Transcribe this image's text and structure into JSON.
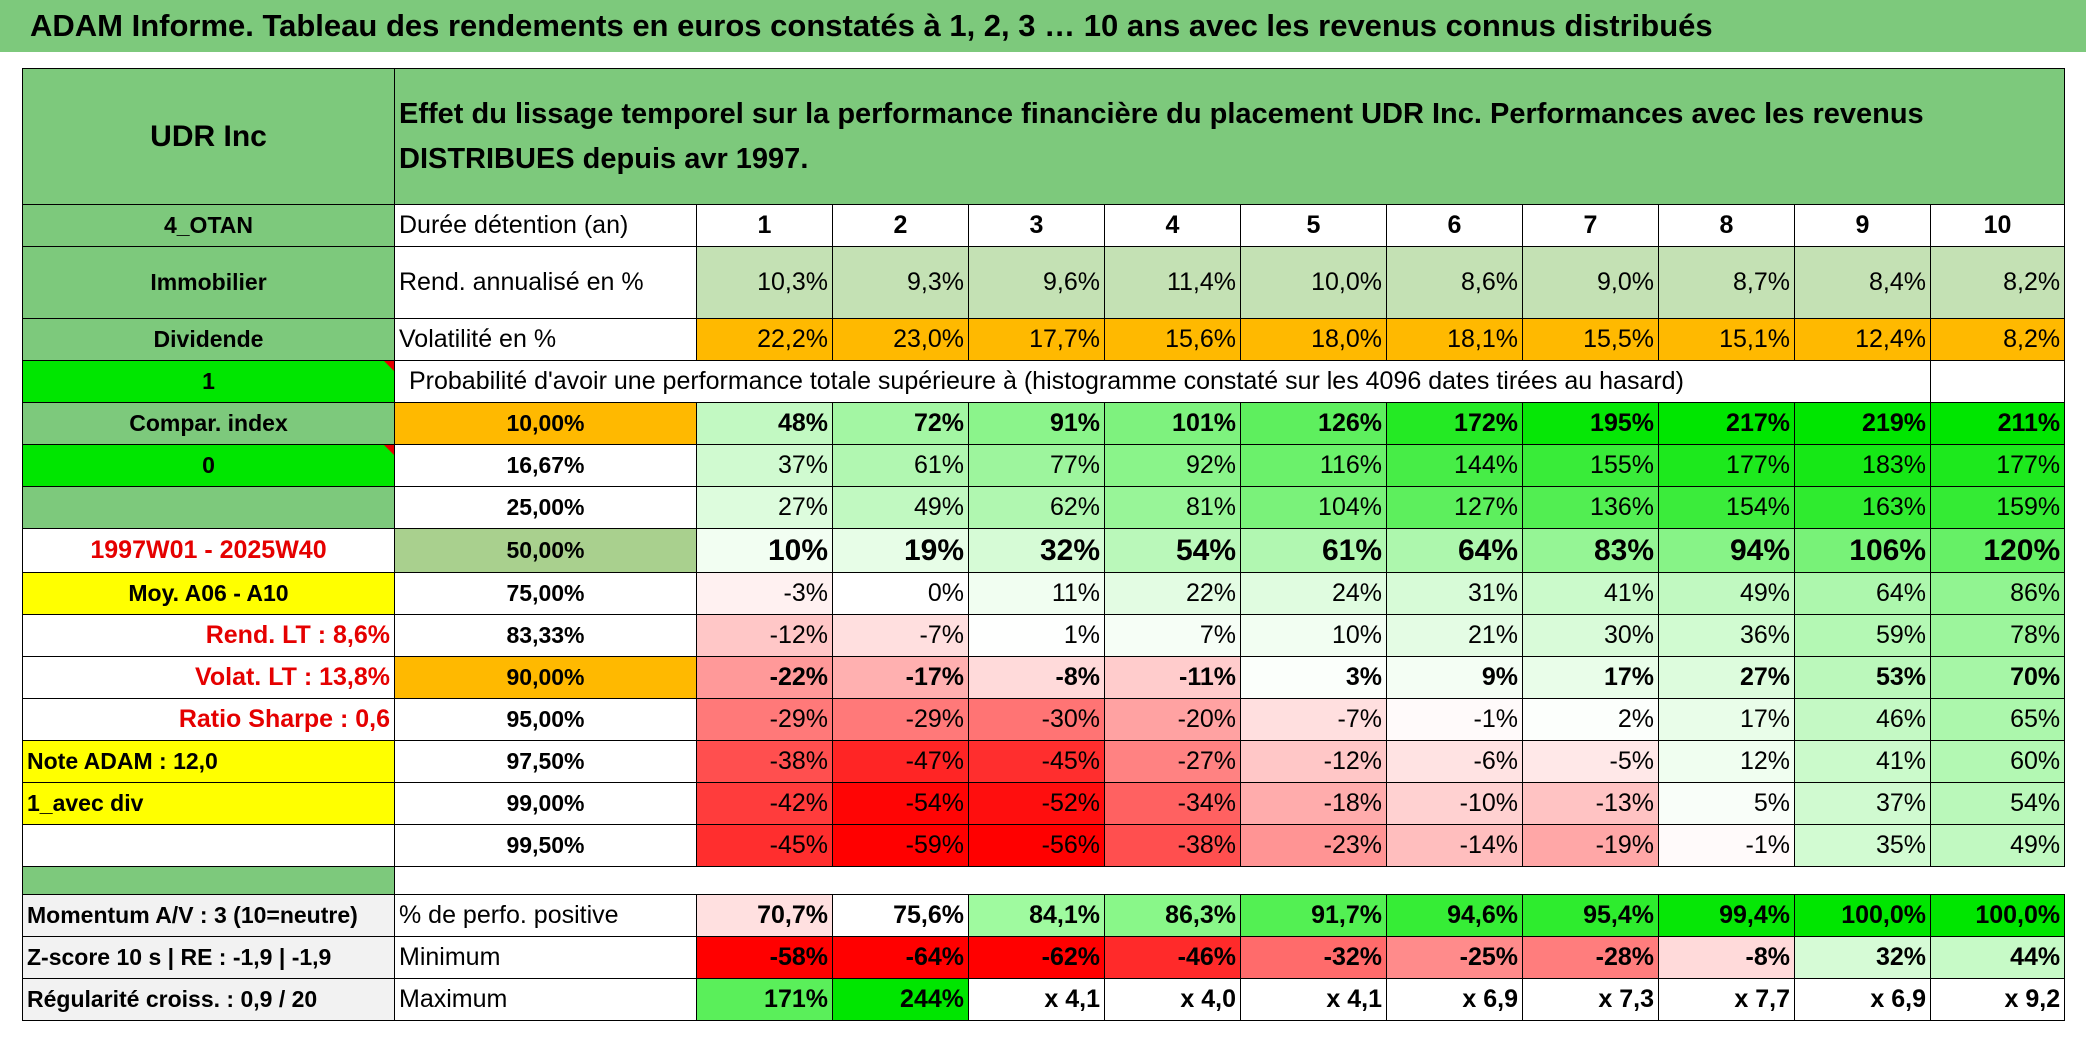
{
  "title": "ADAM Informe. Tableau des rendements en euros constatés à 1, 2, 3 … 10 ans avec les revenus connus distribués",
  "left": {
    "name": "UDR Inc",
    "code": "4_OTAN",
    "sector": "Immobilier",
    "type": "Dividende",
    "flag1": "1",
    "compar": "Compar. index",
    "flag2": "0",
    "period": "1997W01 - 2025W40",
    "moy": "Moy. A06 - A10",
    "rend_lt": "Rend. LT :   8,6%",
    "volat_lt": "Volat. LT :   13,8%",
    "sharpe": "Ratio Sharpe :   0,6",
    "note": "Note ADAM : 12,0",
    "mode": "1_avec div"
  },
  "header_text": "Effet du lissage temporel sur la performance financière du placement UDR Inc. Performances avec les revenus DISTRIBUES depuis avr 1997.",
  "durations_label": "Durée détention (an)",
  "durations": [
    "1",
    "2",
    "3",
    "4",
    "5",
    "6",
    "7",
    "8",
    "9",
    "10"
  ],
  "rend_label": "Rend. annualisé en %",
  "rend": [
    "10,3%",
    "9,3%",
    "9,6%",
    "11,4%",
    "10,0%",
    "8,6%",
    "9,0%",
    "8,7%",
    "8,4%",
    "8,2%"
  ],
  "vol_label": "Volatilité en %",
  "vol": [
    "22,2%",
    "23,0%",
    "17,7%",
    "15,6%",
    "18,0%",
    "18,1%",
    "15,5%",
    "15,1%",
    "12,4%",
    "8,2%"
  ],
  "prob_label": "Probabilité d'avoir une performance totale supérieure à (histogramme constaté sur les 4096 dates tirées au hasard)",
  "prob_rows": [
    {
      "level": "10,00%",
      "values": [
        "48%",
        "72%",
        "91%",
        "101%",
        "126%",
        "172%",
        "195%",
        "217%",
        "219%",
        "211%"
      ]
    },
    {
      "level": "16,67%",
      "values": [
        "37%",
        "61%",
        "77%",
        "92%",
        "116%",
        "144%",
        "155%",
        "177%",
        "183%",
        "177%"
      ]
    },
    {
      "level": "25,00%",
      "values": [
        "27%",
        "49%",
        "62%",
        "81%",
        "104%",
        "127%",
        "136%",
        "154%",
        "163%",
        "159%"
      ]
    },
    {
      "level": "50,00%",
      "values": [
        "10%",
        "19%",
        "32%",
        "54%",
        "61%",
        "64%",
        "83%",
        "94%",
        "106%",
        "120%"
      ]
    },
    {
      "level": "75,00%",
      "values": [
        "-3%",
        "0%",
        "11%",
        "22%",
        "24%",
        "31%",
        "41%",
        "49%",
        "64%",
        "86%"
      ]
    },
    {
      "level": "83,33%",
      "values": [
        "-12%",
        "-7%",
        "1%",
        "7%",
        "10%",
        "21%",
        "30%",
        "36%",
        "59%",
        "78%"
      ]
    },
    {
      "level": "90,00%",
      "values": [
        "-22%",
        "-17%",
        "-8%",
        "-11%",
        "3%",
        "9%",
        "17%",
        "27%",
        "53%",
        "70%"
      ]
    },
    {
      "level": "95,00%",
      "values": [
        "-29%",
        "-29%",
        "-30%",
        "-20%",
        "-7%",
        "-1%",
        "2%",
        "17%",
        "46%",
        "65%"
      ]
    },
    {
      "level": "97,50%",
      "values": [
        "-38%",
        "-47%",
        "-45%",
        "-27%",
        "-12%",
        "-6%",
        "-5%",
        "12%",
        "41%",
        "60%"
      ]
    },
    {
      "level": "99,00%",
      "values": [
        "-42%",
        "-54%",
        "-52%",
        "-34%",
        "-18%",
        "-10%",
        "-13%",
        "5%",
        "37%",
        "54%"
      ]
    },
    {
      "level": "99,50%",
      "values": [
        "-45%",
        "-59%",
        "-56%",
        "-38%",
        "-23%",
        "-14%",
        "-19%",
        "-1%",
        "35%",
        "49%"
      ]
    }
  ],
  "bottom": {
    "momentum": "Momentum A/V : 3 (10=neutre)",
    "zscore": "Z-score 10 s | RE : -1,9 | -1,9",
    "regularite": "Régularité croiss. : 0,9 / 20",
    "pos_label": "% de perfo. positive",
    "pos": [
      "70,7%",
      "75,6%",
      "84,1%",
      "86,3%",
      "91,7%",
      "94,6%",
      "95,4%",
      "99,4%",
      "100,0%",
      "100,0%"
    ],
    "min_label": "Minimum",
    "min": [
      "-58%",
      "-64%",
      "-62%",
      "-46%",
      "-32%",
      "-25%",
      "-28%",
      "-8%",
      "32%",
      "44%"
    ],
    "max_label": "Maximum",
    "max": [
      "171%",
      "244%",
      "x 4,1",
      "x 4,0",
      "x 4,1",
      "x 6,9",
      "x 7,3",
      "x 7,7",
      "x 6,9",
      "x 9,2"
    ]
  },
  "colors": {
    "green_header": "#7dc97c",
    "bright_green": "#00e600",
    "yellow": "#ffff00",
    "orange": "#ffb900",
    "red_text": "#e50000"
  }
}
